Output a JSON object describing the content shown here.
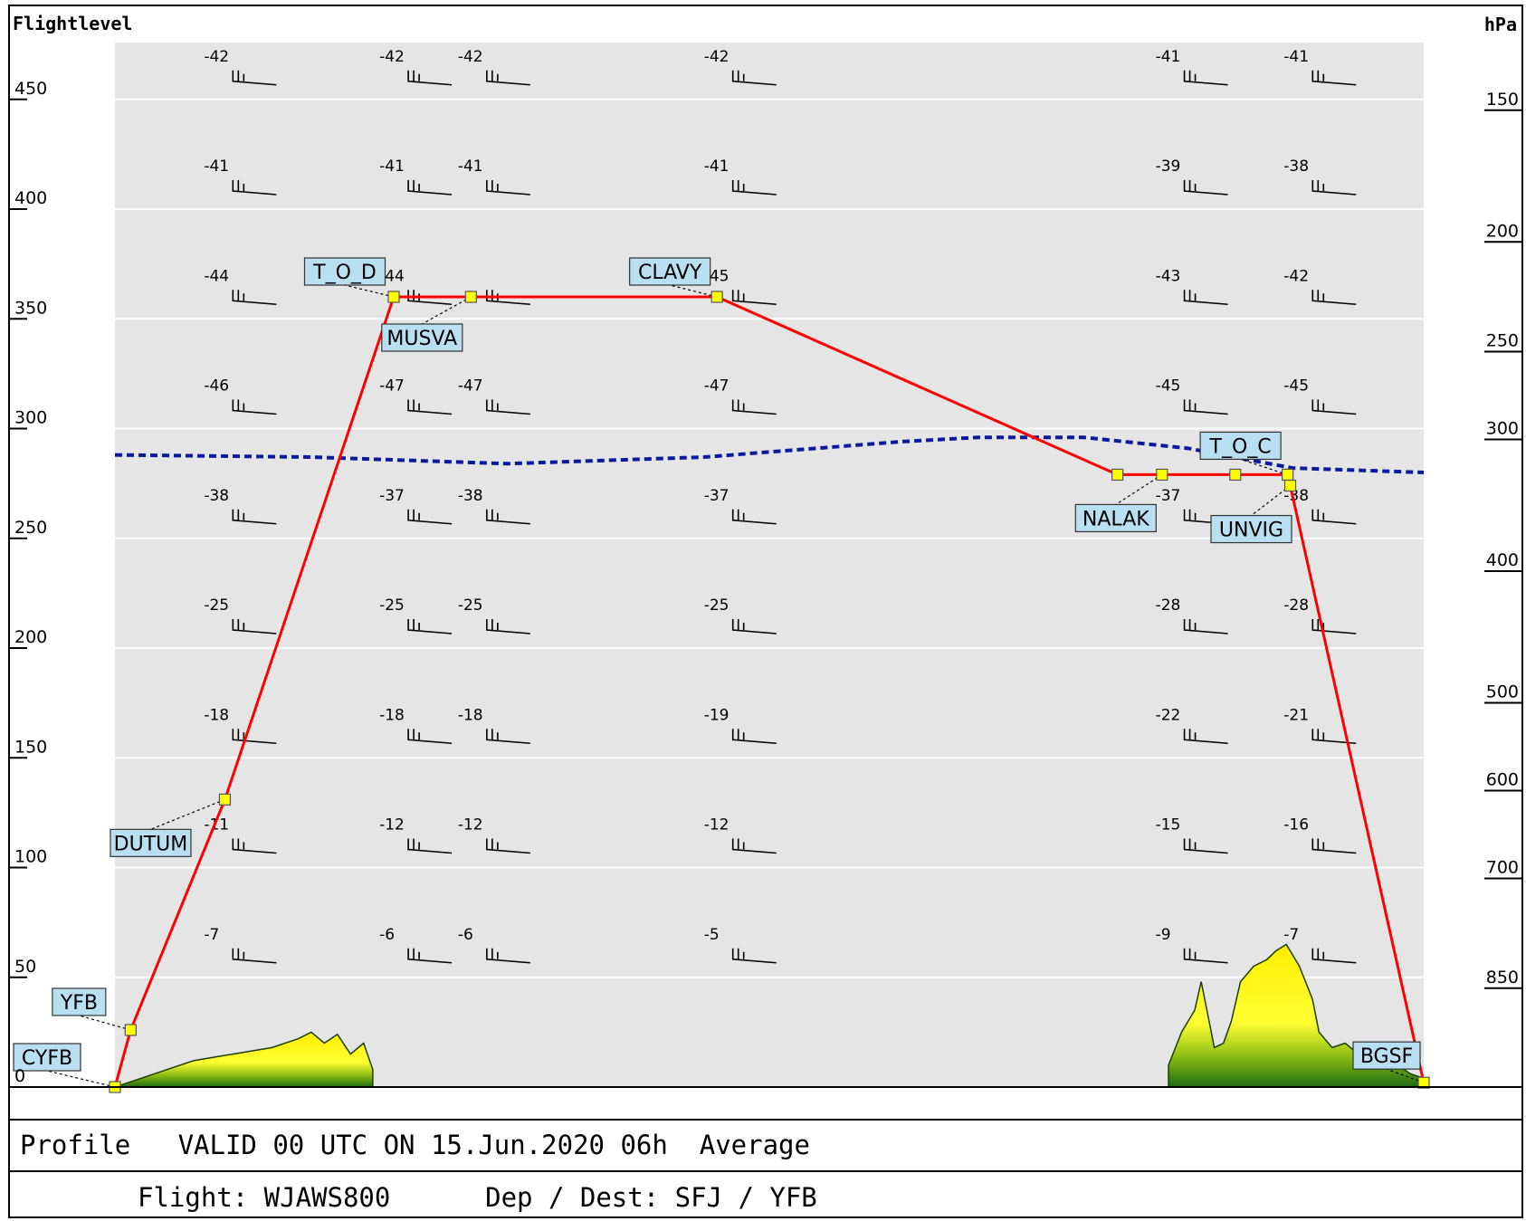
{
  "chart_data": {
    "type": "line",
    "title": "",
    "left_axis_title": "Flightlevel",
    "right_axis_title": "hPa",
    "ylim": [
      0,
      480
    ],
    "grid": true,
    "flight_level_ticks": [
      "0",
      "50",
      "100",
      "150",
      "200",
      "250",
      "300",
      "350",
      "400",
      "450"
    ],
    "pressure_ticks": [
      {
        "fl": 450,
        "label": "150"
      },
      {
        "fl": 390,
        "label": "200"
      },
      {
        "fl": 340,
        "label": "250"
      },
      {
        "fl": 300,
        "label": "300"
      },
      {
        "fl": 240,
        "label": "400"
      },
      {
        "fl": 180,
        "label": "500"
      },
      {
        "fl": 140,
        "label": "600"
      },
      {
        "fl": 100,
        "label": "700"
      },
      {
        "fl": 50,
        "label": "850"
      }
    ],
    "series": [
      {
        "name": "",
        "color": "#ff0000",
        "x": [
          0,
          1.2,
          8.4,
          21.3,
          27.2,
          46,
          76.6,
          80,
          85.6,
          89.6,
          89.8,
          100
        ],
        "y": [
          0,
          26,
          131,
          360,
          360,
          360,
          279,
          279,
          279,
          279,
          274,
          2
        ]
      }
    ],
    "tropopause": {
      "color": "#0a1a9e",
      "x": [
        0,
        15,
        30,
        45,
        60,
        66,
        74,
        82,
        90,
        100
      ],
      "y": [
        288,
        287,
        284,
        287,
        294,
        296,
        296,
        291,
        282,
        280
      ]
    },
    "waypoints": [
      {
        "name": "CYFB",
        "x": 0,
        "y": 0
      },
      {
        "name": "YFB",
        "x": 1.2,
        "y": 26
      },
      {
        "name": "DUTUM",
        "x": 8.4,
        "y": 131
      },
      {
        "name": "T_O_D",
        "x": 21.3,
        "y": 360
      },
      {
        "name": "MUSVA",
        "x": 27.2,
        "y": 360
      },
      {
        "name": "CLAVY",
        "x": 46,
        "y": 360
      },
      {
        "name": "NALAK",
        "x": 80,
        "y": 279
      },
      {
        "name": "T_O_C",
        "x": 89.6,
        "y": 279
      },
      {
        "name": "UNVIG",
        "x": 89.8,
        "y": 274
      },
      {
        "name": "BGSF",
        "x": 100,
        "y": 2
      }
    ],
    "extra_route_points": [
      {
        "x": 76.6,
        "y": 279
      },
      {
        "x": 85.6,
        "y": 279
      }
    ],
    "temperature_columns": [
      {
        "x": 6.8,
        "temps": [
          "-7",
          "-11",
          "-18",
          "-25",
          "-38",
          "-46",
          "-44",
          "-41",
          "-42"
        ]
      },
      {
        "x": 20.2,
        "temps": [
          "-6",
          "-12",
          "-18",
          "-25",
          "-37",
          "-47",
          "-44",
          "-41",
          "-42"
        ]
      },
      {
        "x": 26.2,
        "temps": [
          "-6",
          "-12",
          "-18",
          "-25",
          "-38",
          "-47",
          "",
          "-41",
          "-42"
        ]
      },
      {
        "x": 45,
        "temps": [
          "-5",
          "-12",
          "-19",
          "-25",
          "-37",
          "-47",
          "-45",
          "-41",
          "-42"
        ]
      },
      {
        "x": 79.5,
        "temps": [
          "-9",
          "-15",
          "-22",
          "-28",
          "-37",
          "-45",
          "-43",
          "-39",
          "-41"
        ]
      },
      {
        "x": 89.3,
        "temps": [
          "-7",
          "-16",
          "-21",
          "-28",
          "-38",
          "-45",
          "-42",
          "-38",
          "-41"
        ]
      }
    ],
    "temperature_levels": [
      50,
      100,
      150,
      200,
      250,
      300,
      350,
      400,
      450
    ],
    "terrain": {
      "segments": [
        {
          "x": [
            0,
            2,
            4,
            6,
            8,
            10,
            12,
            14,
            15,
            16,
            17,
            18,
            19,
            19.7
          ],
          "y": [
            0,
            4,
            8,
            12,
            14,
            16,
            18,
            22,
            25,
            20,
            24,
            15,
            20,
            8
          ]
        },
        {
          "x": [
            80.5,
            81.5,
            82.5,
            83,
            83.6,
            84,
            84.7,
            85.3,
            86,
            87,
            88,
            88.7,
            89.5,
            90.5,
            91.5,
            92,
            93,
            94,
            95,
            96,
            97,
            98,
            99,
            100
          ],
          "y": [
            10,
            25,
            35,
            48,
            30,
            18,
            20,
            30,
            48,
            55,
            58,
            62,
            65,
            55,
            40,
            25,
            18,
            20,
            15,
            12,
            18,
            10,
            6,
            4
          ]
        }
      ]
    }
  },
  "footer": {
    "line1": "Profile   VALID 00 UTC ON 15.Jun.2020 06h  Average",
    "line2": "Flight: WJAWS800      Dep / Dest: SFJ / YFB"
  },
  "colors": {
    "plot_background": "#e5e5e5",
    "route": "#ff0000",
    "tropopause": "#0a1a9e",
    "waypoint_box": "#b8e0f0",
    "waypoint_marker": "#ffff00",
    "terrain_top": "#ffff00",
    "terrain_bottom": "#2e7d15"
  }
}
